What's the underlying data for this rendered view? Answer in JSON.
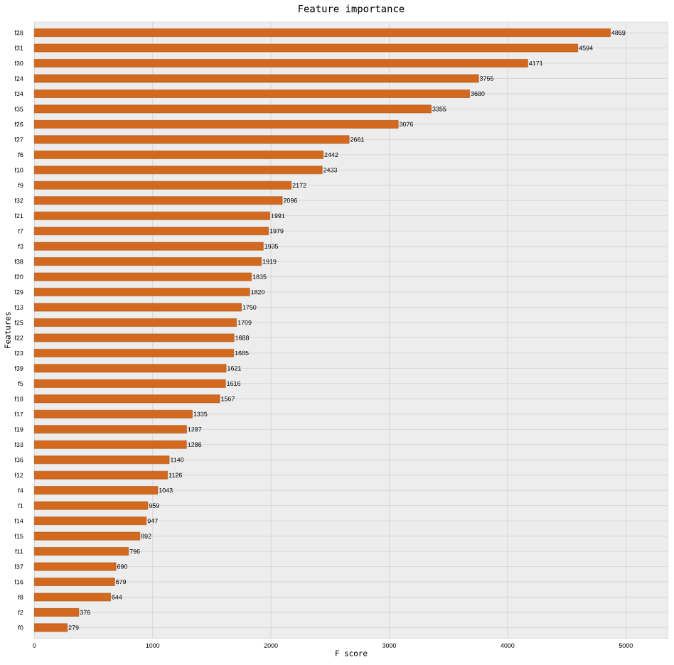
{
  "chart_data": {
    "type": "bar",
    "orientation": "horizontal",
    "title": "Feature importance",
    "xlabel": "F score",
    "ylabel": "Features",
    "categories": [
      "f28",
      "f31",
      "f30",
      "f24",
      "f34",
      "f35",
      "f26",
      "f27",
      "f6",
      "f10",
      "f9",
      "f32",
      "f21",
      "f7",
      "f3",
      "f38",
      "f20",
      "f29",
      "f13",
      "f25",
      "f22",
      "f23",
      "f39",
      "f5",
      "f18",
      "f17",
      "f19",
      "f33",
      "f36",
      "f12",
      "f4",
      "f1",
      "f14",
      "f15",
      "f11",
      "f37",
      "f16",
      "f8",
      "f2",
      "f0"
    ],
    "values": [
      4869,
      4594,
      4171,
      3755,
      3680,
      3355,
      3076,
      2661,
      2442,
      2433,
      2172,
      2096,
      1991,
      1979,
      1935,
      1919,
      1835,
      1820,
      1750,
      1709,
      1688,
      1685,
      1621,
      1616,
      1567,
      1335,
      1287,
      1286,
      1140,
      1126,
      1043,
      959,
      947,
      892,
      796,
      690,
      679,
      644,
      376,
      279
    ],
    "color": "#d2691e",
    "data_labels": true,
    "grid": true,
    "xlim": [
      0,
      5356
    ],
    "xticks": [
      0,
      1000,
      2000,
      3000,
      4000,
      5000
    ]
  }
}
